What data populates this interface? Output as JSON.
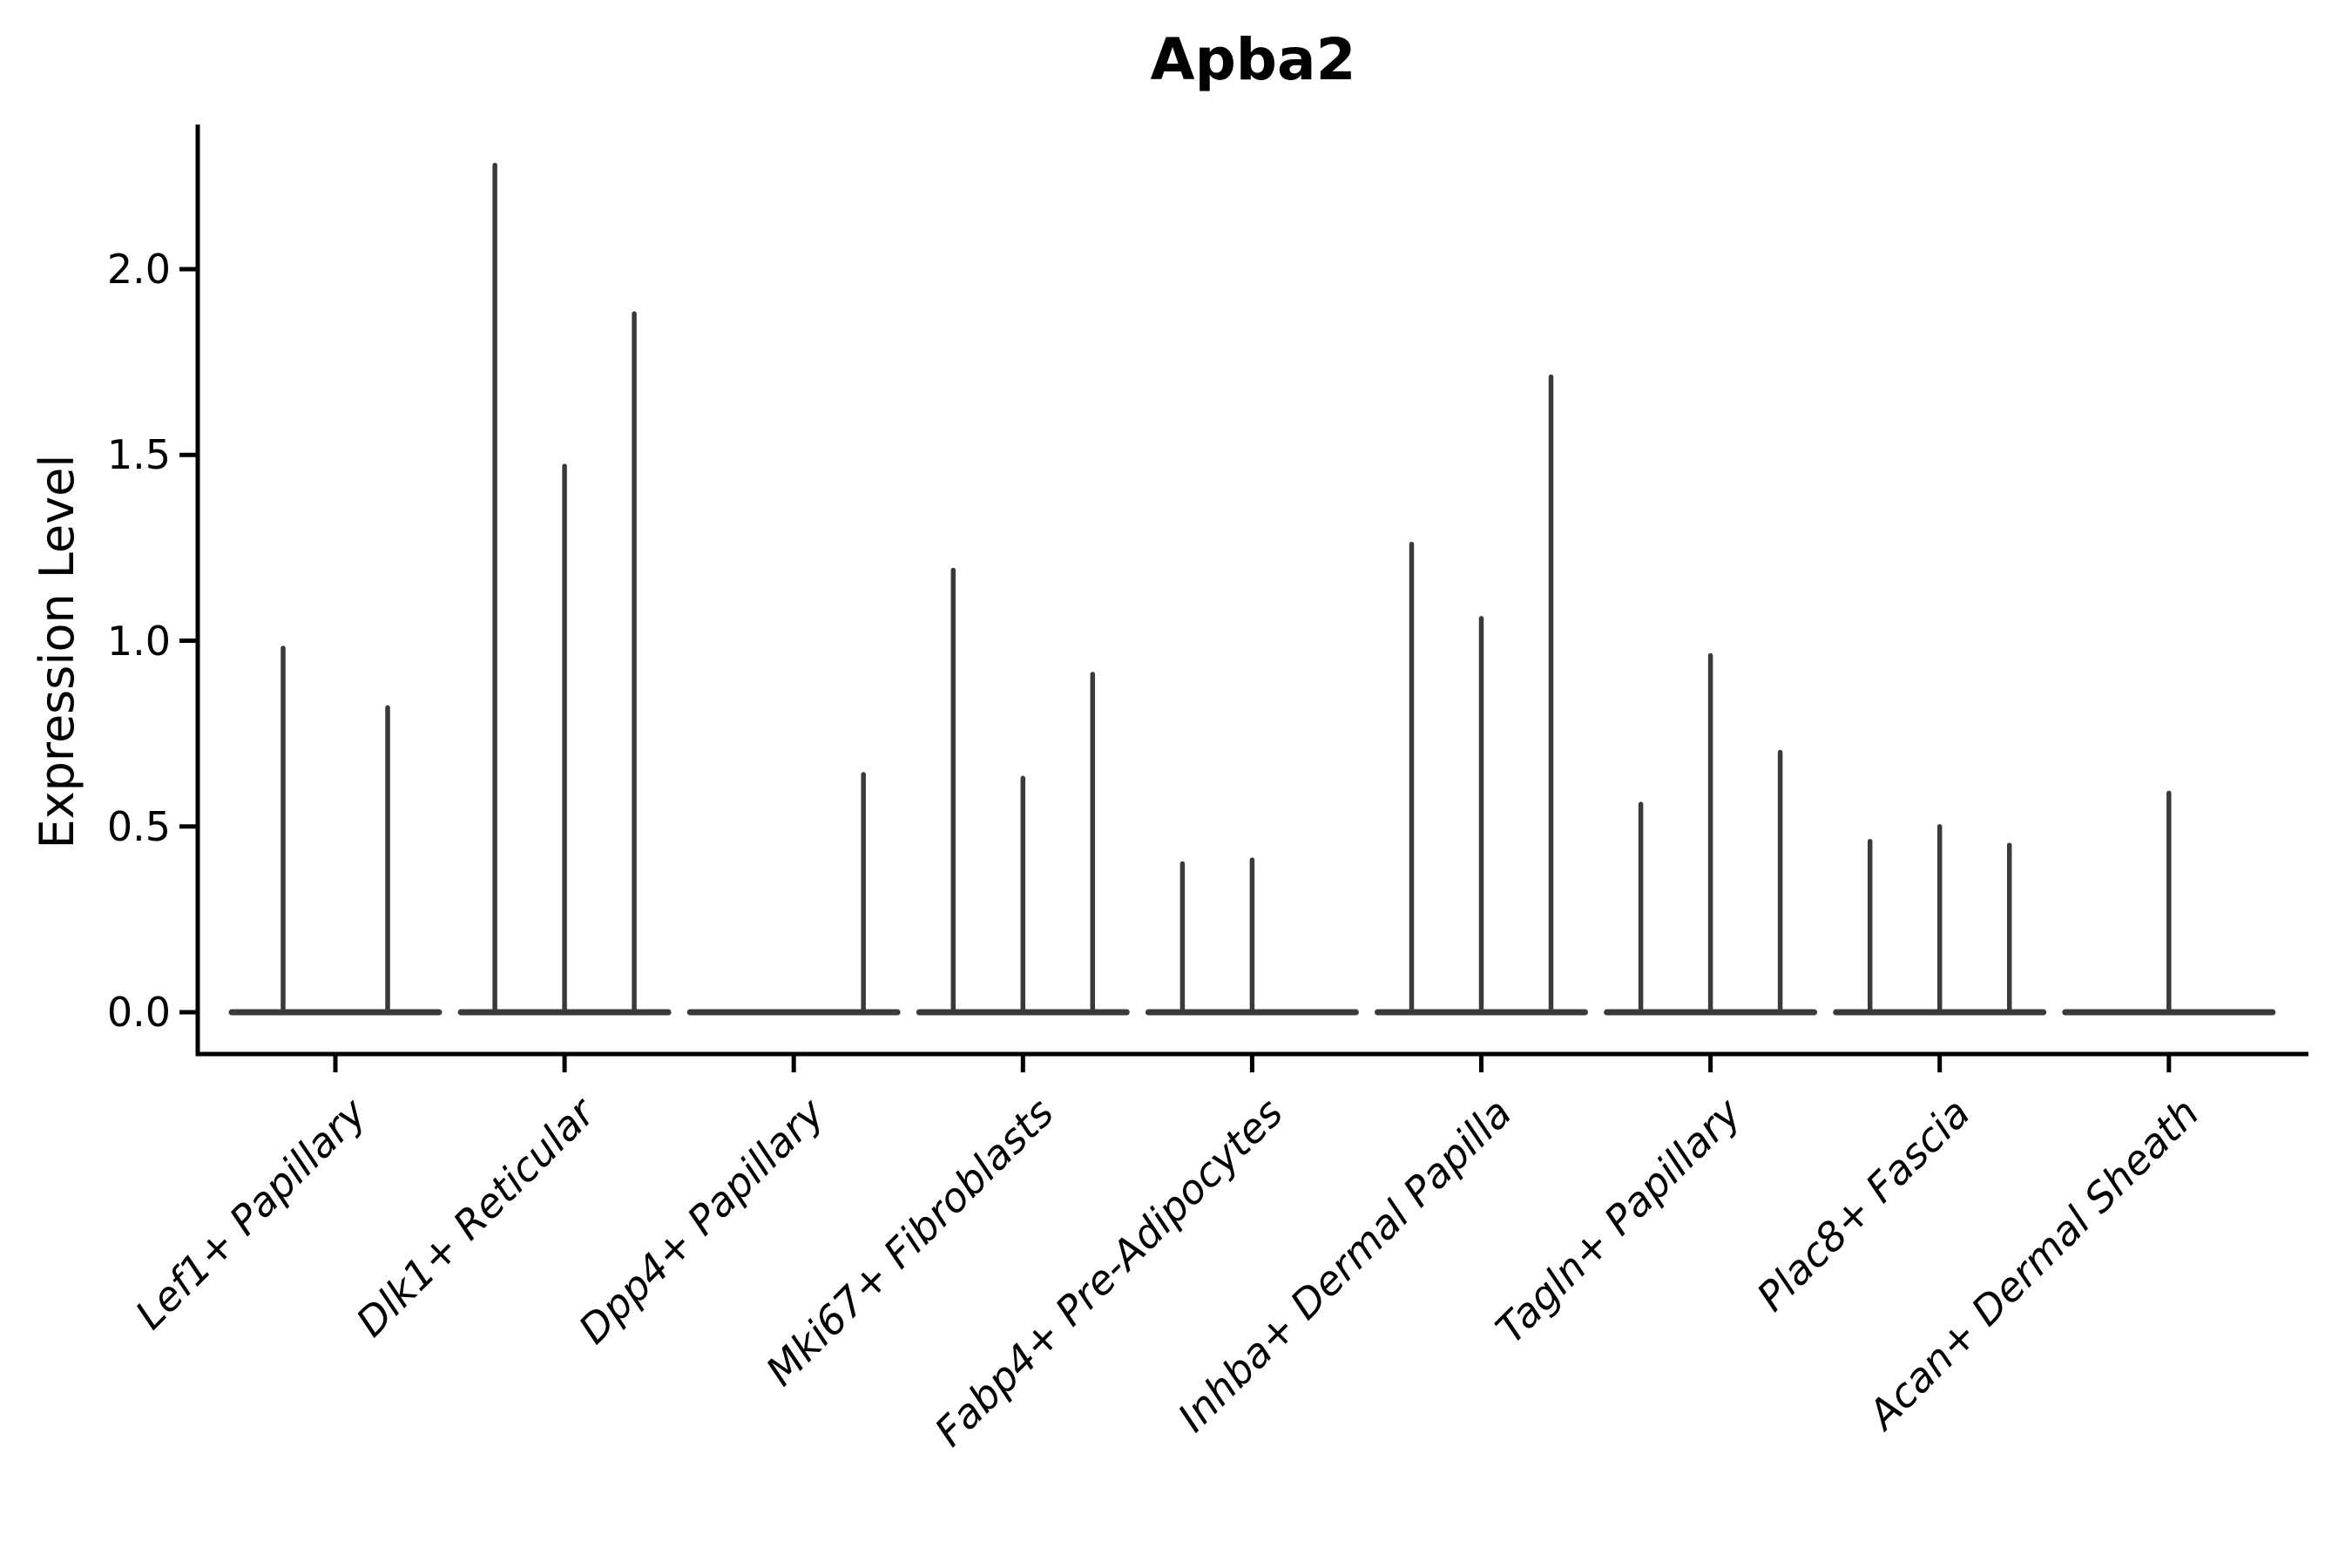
{
  "chart_data": {
    "type": "violin",
    "title": "Apba2",
    "xlabel": "",
    "ylabel": "Expression Level",
    "ylim": [
      -0.11,
      2.39
    ],
    "yticks": [
      0.0,
      0.5,
      1.0,
      1.5,
      2.0
    ],
    "ytick_labels": [
      "0.0",
      "0.5",
      "1.0",
      "1.5",
      "2.0"
    ],
    "grid": false,
    "legend": "none",
    "categories": [
      "Lef1+ Papillary",
      "Dlk1+ Reticular",
      "Dpp4+ Papillary",
      "Mki67+ Fibroblasts",
      "Fabp4+ Pre-Adipocytes",
      "Inhba+ Dermal Papilla",
      "Tagln+ Papillary",
      "Plac8+ Fascia",
      "Acan+ Dermal Sheath"
    ],
    "groups": [
      {
        "category": "Lef1+ Papillary",
        "violin_max_values": [
          0.98,
          0.82
        ]
      },
      {
        "category": "Dlk1+ Reticular",
        "violin_max_values": [
          2.28,
          1.47,
          1.88
        ]
      },
      {
        "category": "Dpp4+ Papillary",
        "violin_max_values": [
          0,
          0,
          0.64
        ]
      },
      {
        "category": "Mki67+ Fibroblasts",
        "violin_max_values": [
          1.19,
          0.63,
          0.91
        ]
      },
      {
        "category": "Fabp4+ Pre-Adipocytes",
        "violin_max_values": [
          0.4,
          0.41,
          0
        ]
      },
      {
        "category": "Inhba+ Dermal Papilla",
        "violin_max_values": [
          1.26,
          1.06,
          1.71
        ]
      },
      {
        "category": "Tagln+ Papillary",
        "violin_max_values": [
          0.56,
          0.96,
          0.7
        ]
      },
      {
        "category": "Plac8+ Fascia",
        "violin_max_values": [
          0.46,
          0.5,
          0.45
        ]
      },
      {
        "category": "Acan+ Dermal Sheath",
        "violin_max_values": [
          0,
          0.59,
          0
        ]
      }
    ],
    "colors": {
      "violin": "#3a3a3a",
      "axis": "#000000",
      "text": "#000000",
      "background": "#ffffff"
    }
  }
}
